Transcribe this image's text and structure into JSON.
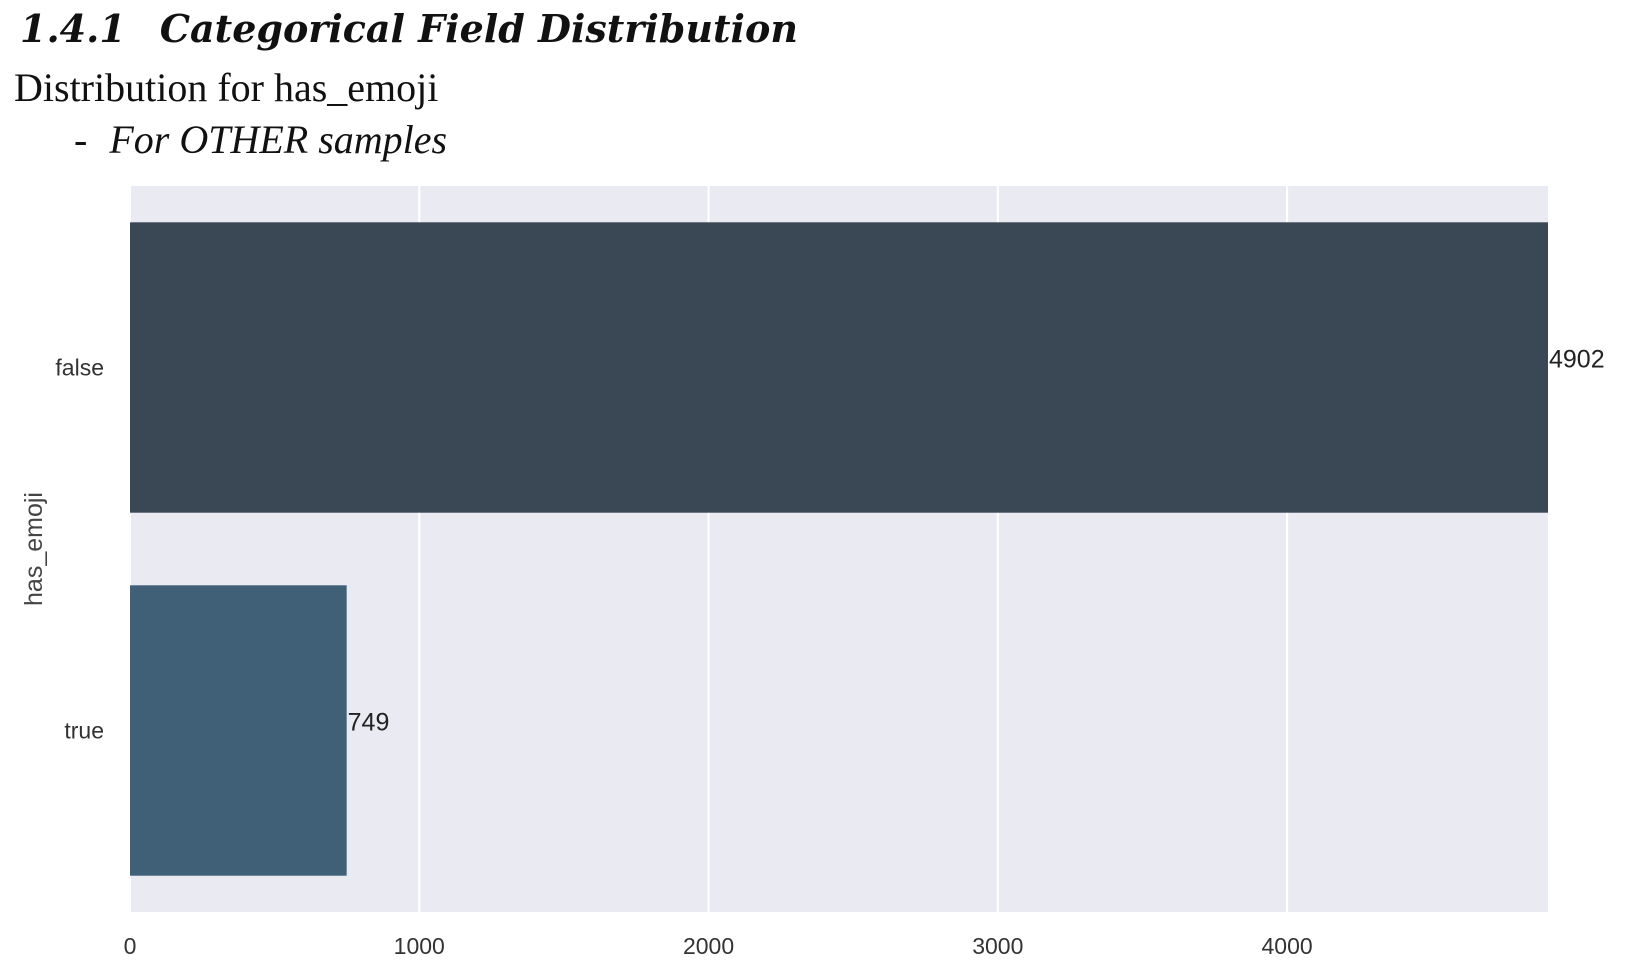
{
  "header": {
    "section_number": "1.4.1",
    "section_title": "Categorical Field Distribution",
    "subtitle": "Distribution for has_emoji",
    "sub_dash": "-",
    "sub_subtitle": "For OTHER samples"
  },
  "chart_data": {
    "type": "bar",
    "orientation": "horizontal",
    "categories": [
      "false",
      "true"
    ],
    "values": [
      4902,
      749
    ],
    "data_labels": [
      "4902",
      "749"
    ],
    "bar_colors": [
      "#3a4856",
      "#406078"
    ],
    "ylabel": "has_emoji",
    "xlabel": "",
    "xlim": [
      0,
      4902
    ],
    "xticks": [
      0,
      1000,
      2000,
      3000,
      4000
    ],
    "xtick_labels": [
      "0",
      "1000",
      "2000",
      "3000",
      "4000"
    ],
    "grid": true,
    "background": "#eaeaf2",
    "grid_color": "#ffffff"
  }
}
